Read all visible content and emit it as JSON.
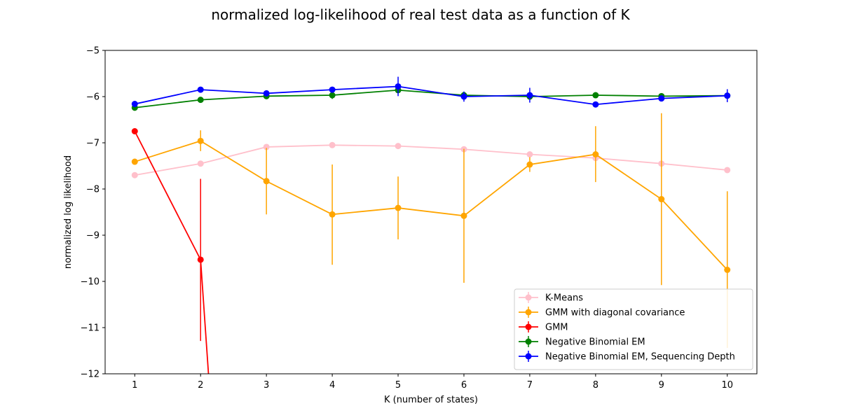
{
  "chart_data": {
    "type": "line",
    "title": "normalized log-likelihood of real test data as a function of K",
    "xlabel": "K (number of states)",
    "ylabel": "normalized log likelihood",
    "x": [
      1,
      2,
      3,
      4,
      5,
      6,
      7,
      8,
      9,
      10
    ],
    "xlim": [
      0.55,
      10.45
    ],
    "ylim": [
      -12,
      -5
    ],
    "xticks": [
      "1",
      "2",
      "3",
      "4",
      "5",
      "6",
      "7",
      "8",
      "9",
      "10"
    ],
    "yticks": [
      "−5",
      "−6",
      "−7",
      "−8",
      "−9",
      "−10",
      "−11",
      "−12"
    ],
    "ytick_values": [
      -5,
      -6,
      -7,
      -8,
      -9,
      -10,
      -11,
      -12
    ],
    "legend_position": "lower-right",
    "grid": false,
    "series": [
      {
        "name": "K-Means",
        "color": "#ffc0cb",
        "x": [
          1,
          2,
          3,
          4,
          5,
          6,
          7,
          8,
          9,
          10
        ],
        "values": [
          -7.7,
          -7.45,
          -7.09,
          -7.05,
          -7.07,
          -7.14,
          -7.25,
          -7.33,
          -7.45,
          -7.59
        ],
        "err_low": [
          -7.7,
          -7.45,
          -7.09,
          -7.05,
          -7.07,
          -7.14,
          -7.25,
          -7.33,
          -7.45,
          -7.59
        ],
        "err_high": [
          -7.7,
          -7.45,
          -7.09,
          -7.05,
          -7.07,
          -7.14,
          -7.25,
          -7.33,
          -7.45,
          -7.59
        ]
      },
      {
        "name": "GMM with diagonal covariance",
        "color": "#ffa500",
        "x": [
          1,
          2,
          3,
          4,
          5,
          6,
          7,
          8,
          9,
          10
        ],
        "values": [
          -7.41,
          -6.96,
          -7.83,
          -8.55,
          -8.41,
          -8.58,
          -7.47,
          -7.25,
          -8.22,
          -9.75
        ],
        "err_low": [
          -7.41,
          -7.18,
          -8.55,
          -9.64,
          -9.09,
          -10.03,
          -7.63,
          -7.85,
          -10.08,
          -11.44
        ],
        "err_high": [
          -7.41,
          -6.73,
          -7.11,
          -7.47,
          -7.73,
          -7.13,
          -7.31,
          -6.64,
          -6.36,
          -8.05
        ]
      },
      {
        "name": "GMM",
        "color": "#ff0000",
        "x": [
          1,
          2,
          2.12
        ],
        "values": [
          -6.75,
          -9.53,
          -12.0
        ],
        "err_low": [
          -6.75,
          -11.29,
          -12.0
        ],
        "err_high": [
          -6.75,
          -7.78,
          -12.0
        ]
      },
      {
        "name": "Negative Binomial EM",
        "color": "#008000",
        "x": [
          1,
          2,
          3,
          4,
          5,
          6,
          7,
          8,
          9,
          10
        ],
        "values": [
          -6.24,
          -6.07,
          -5.99,
          -5.97,
          -5.86,
          -5.97,
          -6.0,
          -5.97,
          -5.99,
          -5.98
        ],
        "err_low": [
          -6.24,
          -6.07,
          -5.99,
          -6.05,
          -5.91,
          -6.03,
          -6.05,
          -5.97,
          -5.99,
          -6.02
        ],
        "err_high": [
          -6.24,
          -6.07,
          -5.99,
          -5.89,
          -5.81,
          -5.9,
          -5.95,
          -5.97,
          -5.99,
          -5.94
        ]
      },
      {
        "name": "Negative Binomial EM, Sequencing Depth",
        "color": "#0000ff",
        "x": [
          1,
          2,
          3,
          4,
          5,
          6,
          7,
          8,
          9,
          10
        ],
        "values": [
          -6.16,
          -5.85,
          -5.93,
          -5.85,
          -5.78,
          -6.0,
          -5.97,
          -6.17,
          -6.04,
          -5.98
        ],
        "err_low": [
          -6.16,
          -5.85,
          -5.93,
          -5.85,
          -5.99,
          -6.11,
          -6.13,
          -6.17,
          -6.04,
          -6.12
        ],
        "err_high": [
          -6.16,
          -5.85,
          -5.93,
          -5.85,
          -5.57,
          -5.89,
          -5.81,
          -6.17,
          -6.04,
          -5.84
        ]
      }
    ]
  }
}
